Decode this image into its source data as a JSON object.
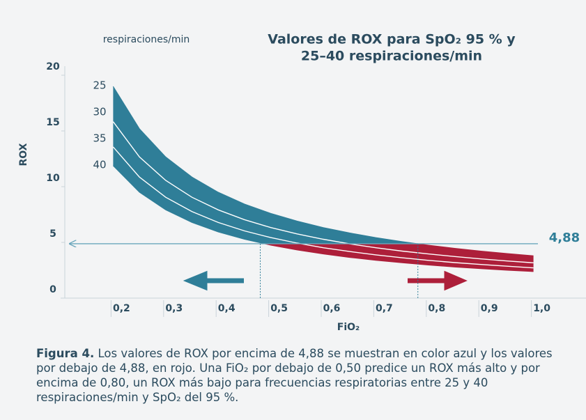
{
  "chart_data": {
    "type": "line",
    "title": [
      "Valores de ROX para SpO₂ 95 % y",
      "25–40 respiraciones/min"
    ],
    "legend_title": "respiraciones/min",
    "xlabel": "FiO₂",
    "ylabel": "ROX",
    "x": [
      0.2,
      0.25,
      0.3,
      0.35,
      0.4,
      0.45,
      0.5,
      0.55,
      0.6,
      0.65,
      0.7,
      0.75,
      0.8,
      0.85,
      0.9,
      0.95,
      1.0
    ],
    "series": [
      {
        "name": "25",
        "color": "#ffffff",
        "values": [
          19,
          15.2,
          12.67,
          10.86,
          9.5,
          8.44,
          7.6,
          6.91,
          6.33,
          5.85,
          5.43,
          5.07,
          4.75,
          4.47,
          4.22,
          4.0,
          3.8
        ]
      },
      {
        "name": "30",
        "color": "#ffffff",
        "values": [
          15.83,
          12.67,
          10.56,
          9.05,
          7.92,
          7.04,
          6.33,
          5.76,
          5.28,
          4.87,
          4.52,
          4.22,
          3.96,
          3.73,
          3.52,
          3.33,
          3.17
        ]
      },
      {
        "name": "35",
        "color": "#ffffff",
        "values": [
          13.57,
          10.86,
          9.05,
          7.76,
          6.79,
          6.03,
          5.43,
          4.94,
          4.52,
          4.18,
          3.88,
          3.62,
          3.39,
          3.19,
          3.02,
          2.86,
          2.71
        ]
      },
      {
        "name": "40",
        "color": "#ffffff",
        "values": [
          11.88,
          9.5,
          7.92,
          6.79,
          5.94,
          5.28,
          4.75,
          4.32,
          3.96,
          3.65,
          3.39,
          3.17,
          2.97,
          2.79,
          2.64,
          2.5,
          2.38
        ]
      }
    ],
    "band_colors": {
      "above": "#2f7e98",
      "below": "#ad1f3a"
    },
    "threshold": {
      "value": 4.88,
      "label": "4,88",
      "color": "#6aa6bb"
    },
    "vlines": [
      0.48,
      0.78
    ],
    "xlim": [
      0.1,
      1.1
    ],
    "ylim": [
      0,
      20
    ],
    "xticks": [
      {
        "value": 0.2,
        "label": "0,2"
      },
      {
        "value": 0.3,
        "label": "0,3"
      },
      {
        "value": 0.4,
        "label": "0,4"
      },
      {
        "value": 0.5,
        "label": "0,5"
      },
      {
        "value": 0.6,
        "label": "0,6"
      },
      {
        "value": 0.7,
        "label": "0,7"
      },
      {
        "value": 0.8,
        "label": "0,8"
      },
      {
        "value": 0.9,
        "label": "0,9"
      },
      {
        "value": 1.0,
        "label": "1,0"
      }
    ],
    "yticks": [
      0,
      5,
      10,
      15,
      20
    ],
    "caption": {
      "label": "Figura 4.",
      "text": "Los valores de ROX por encima de 4,88 se muestran en color azul y los valores por debajo de 4,88, en rojo. Una FiO₂ por debajo de 0,50 predice un ROX más alto y por encima de 0,80, un ROX más bajo para frecuencias respiratorias entre 25 y 40 respiraciones/min y SpO₂ del 95 %."
    }
  }
}
